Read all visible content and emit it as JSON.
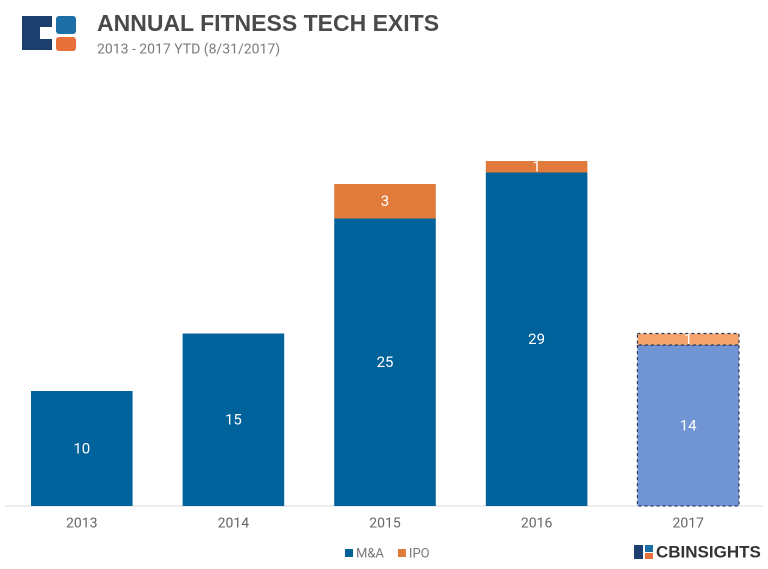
{
  "chart_data": {
    "type": "stacked-bar",
    "title": "ANNUAL FITNESS TECH EXITS",
    "subtitle": "2013 - 2017 YTD (8/31/2017)",
    "categories": [
      "2013",
      "2014",
      "2015",
      "2016",
      "2017"
    ],
    "series": [
      {
        "name": "M&A",
        "color": "#00629b",
        "colors": [
          "#00629b",
          "#00629b",
          "#00629b",
          "#00629b",
          "#7094d4"
        ],
        "values": [
          10,
          15,
          25,
          29,
          14
        ],
        "value_labels": [
          "10",
          "15",
          "25",
          "29",
          "14"
        ]
      },
      {
        "name": "IPO",
        "color": "#e07b3c",
        "colors": [
          "#e07b3c",
          "#e07b3c",
          "#e07b3c",
          "#e07b3c",
          "#f4a46c"
        ],
        "values": [
          null,
          null,
          3,
          1,
          1
        ],
        "value_labels": [
          null,
          null,
          "3",
          "1",
          "1"
        ]
      }
    ],
    "dashed": [
      false,
      false,
      false,
      false,
      true
    ],
    "ylim": [
      0,
      30
    ],
    "legend": "bottom",
    "source": "CBINSIGHTS"
  }
}
